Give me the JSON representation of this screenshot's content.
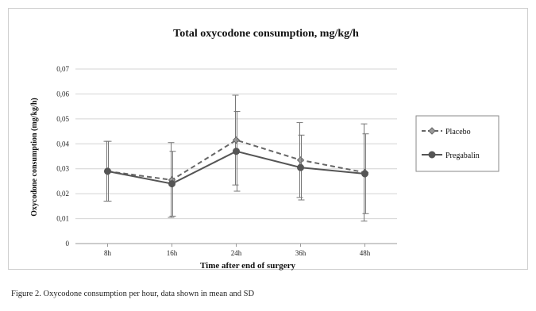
{
  "chart_data": {
    "type": "line",
    "title": "Total oxycodone consumption, mg/kg/h",
    "xlabel": "Time after end of surgery",
    "ylabel": "Oxycodone consumption (mg/kg/h)",
    "categories": [
      "8h",
      "16h",
      "24h",
      "36h",
      "48h"
    ],
    "ylim": [
      0,
      0.07
    ],
    "yticks": [
      0,
      0.01,
      0.02,
      0.03,
      0.04,
      0.05,
      0.06,
      0.07
    ],
    "ytick_labels": [
      "0",
      "0,01",
      "0,02",
      "0,03",
      "0,04",
      "0,05",
      "0,06",
      "0,07"
    ],
    "grid": true,
    "legend_position": "right",
    "error_bars": "SD",
    "series": [
      {
        "name": "Placebo",
        "style": "dashed",
        "marker": "diamond",
        "color": "#666666",
        "values": [
          0.029,
          0.0255,
          0.0415,
          0.0335,
          0.0285
        ],
        "sd": [
          0.012,
          0.015,
          0.018,
          0.015,
          0.0195
        ]
      },
      {
        "name": "Pregabalin",
        "style": "solid",
        "marker": "circle",
        "color": "#555555",
        "values": [
          0.029,
          0.024,
          0.037,
          0.0305,
          0.028
        ],
        "sd": [
          0.012,
          0.013,
          0.016,
          0.013,
          0.016
        ]
      }
    ]
  },
  "caption": "Figure 2. Oxycodone consumption per hour, data shown in mean and SD"
}
